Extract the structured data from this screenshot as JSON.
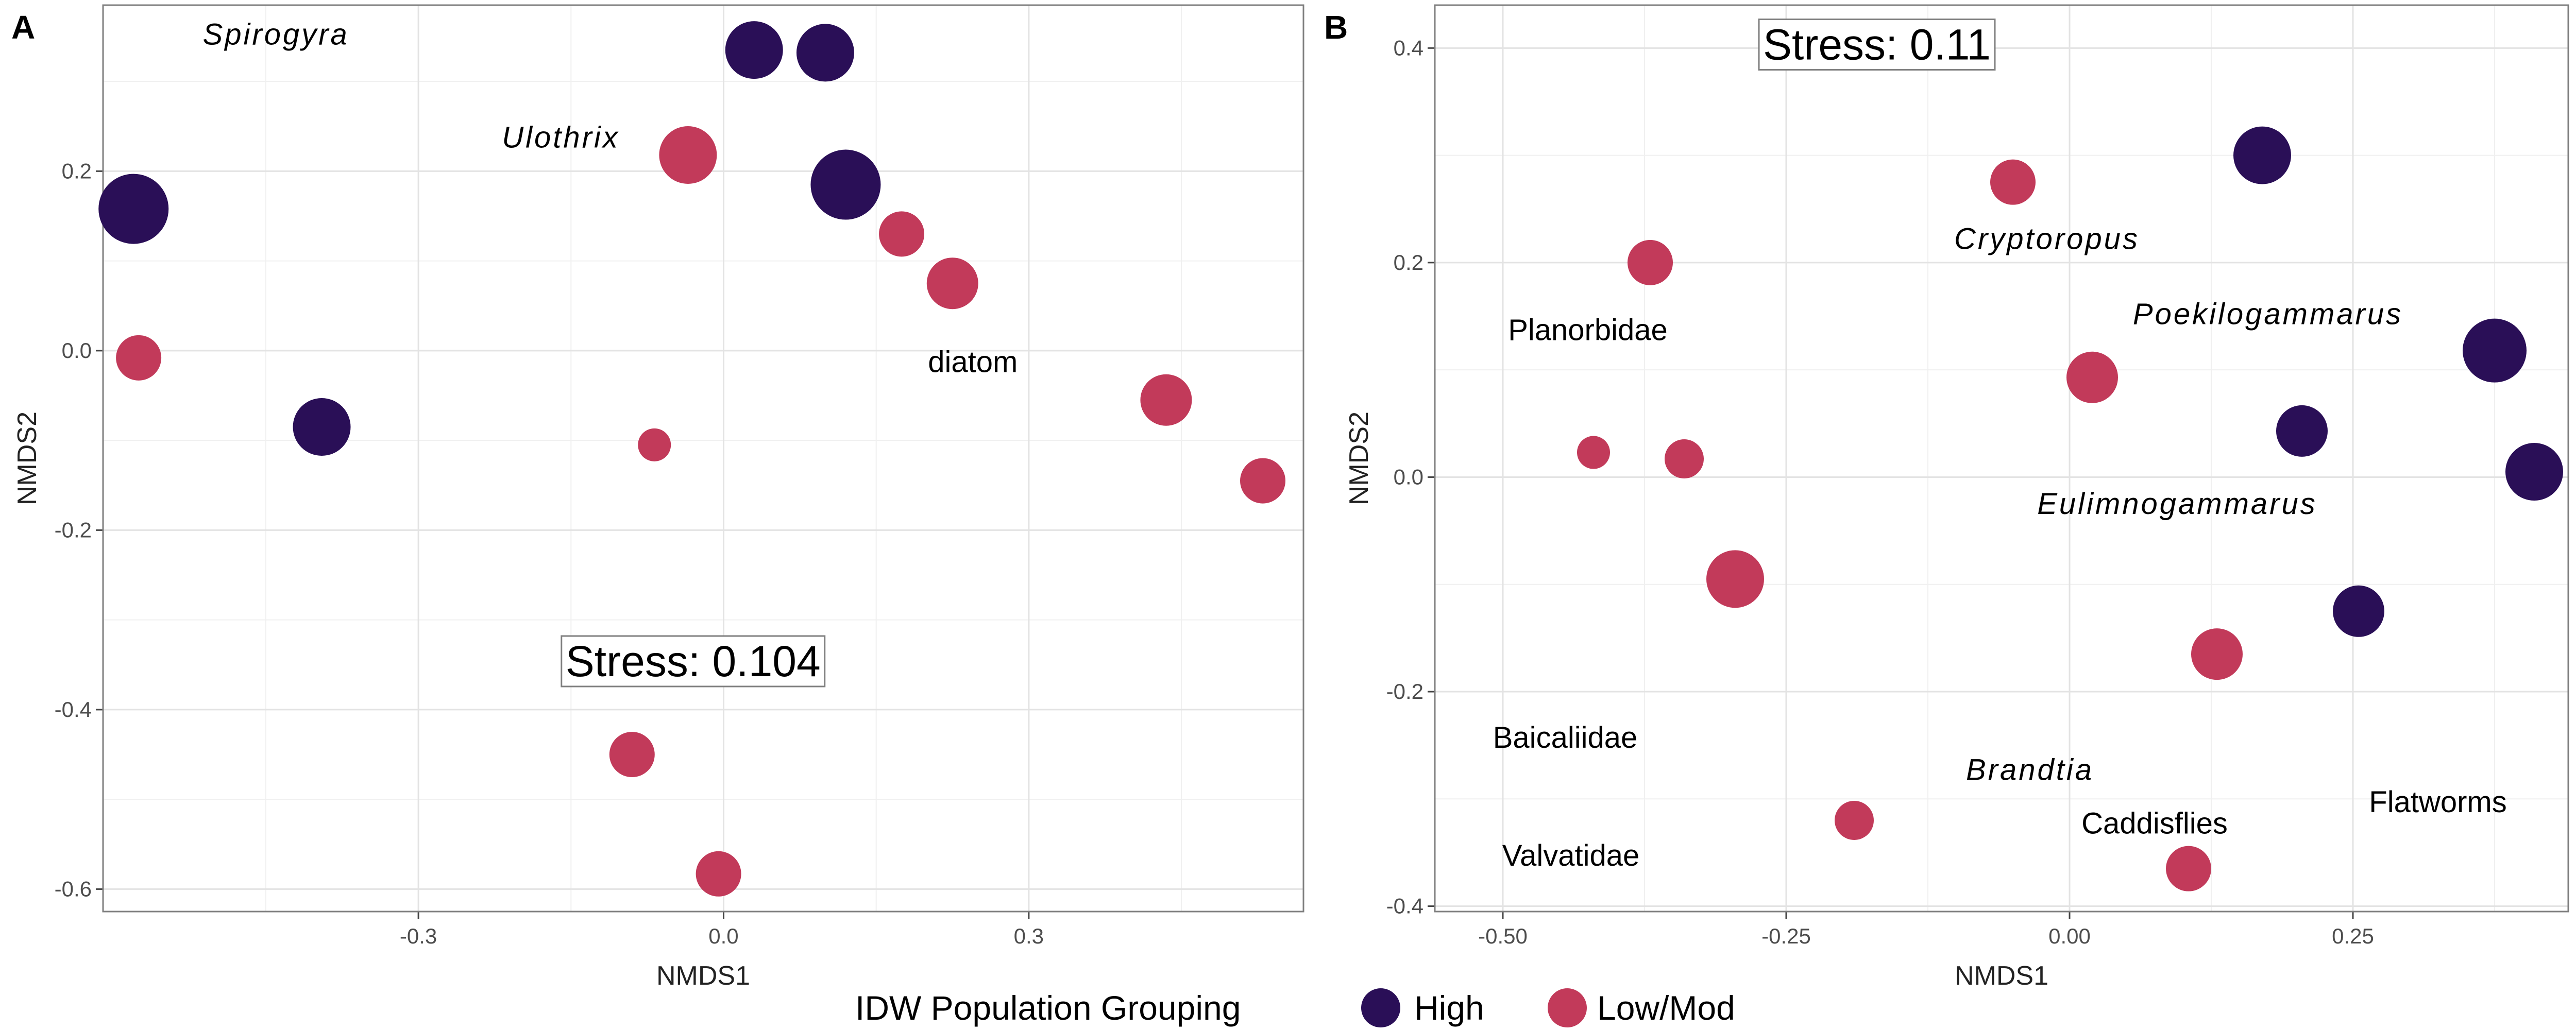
{
  "legend": {
    "title": "IDW Population Grouping",
    "entries": [
      {
        "key": "high",
        "label": "High",
        "color": "#2a0f57"
      },
      {
        "key": "low",
        "label": "Low/Mod",
        "color": "#c23a5a"
      }
    ]
  },
  "chart_data": [
    {
      "type": "scatter",
      "panel": "A",
      "xlabel": "NMDS1",
      "ylabel": "NMDS2",
      "xlim": [
        -0.61,
        0.57
      ],
      "ylim": [
        -0.625,
        0.385
      ],
      "xticks": [
        -0.3,
        0.0,
        0.3
      ],
      "xtick_labels": [
        "-0.3",
        "0.0",
        "0.3"
      ],
      "yticks": [
        -0.6,
        -0.4,
        -0.2,
        0.0,
        0.2
      ],
      "ytick_labels": [
        "-0.6",
        "-0.4",
        "-0.2",
        "0.0",
        "0.2"
      ],
      "grid": true,
      "stress": "Stress:  0.104",
      "stress_pos": [
        -0.03,
        -0.35
      ],
      "points": [
        {
          "x": 0.03,
          "y": 0.335,
          "group": "high",
          "size": 3
        },
        {
          "x": 0.1,
          "y": 0.332,
          "group": "high",
          "size": 3
        },
        {
          "x": 0.12,
          "y": 0.185,
          "group": "high",
          "size": 4
        },
        {
          "x": -0.58,
          "y": 0.158,
          "group": "high",
          "size": 4
        },
        {
          "x": -0.395,
          "y": -0.085,
          "group": "high",
          "size": 3
        },
        {
          "x": -0.035,
          "y": 0.218,
          "group": "low",
          "size": 3
        },
        {
          "x": 0.175,
          "y": 0.13,
          "group": "low",
          "size": 2
        },
        {
          "x": 0.225,
          "y": 0.075,
          "group": "low",
          "size": 2.5
        },
        {
          "x": -0.575,
          "y": -0.008,
          "group": "low",
          "size": 2
        },
        {
          "x": 0.435,
          "y": -0.055,
          "group": "low",
          "size": 2.5
        },
        {
          "x": 0.53,
          "y": -0.145,
          "group": "low",
          "size": 2
        },
        {
          "x": -0.068,
          "y": -0.105,
          "group": "low",
          "size": 1
        },
        {
          "x": -0.09,
          "y": -0.45,
          "group": "low",
          "size": 2
        },
        {
          "x": -0.005,
          "y": -0.583,
          "group": "low",
          "size": 2
        }
      ],
      "taxa": [
        {
          "text": "Spirogyra",
          "x": -0.44,
          "y": 0.35,
          "italic": true
        },
        {
          "text": "Ulothrix",
          "x": -0.16,
          "y": 0.235,
          "italic": true
        },
        {
          "text": "diatom",
          "x": 0.245,
          "y": -0.015,
          "italic": false
        }
      ]
    },
    {
      "type": "scatter",
      "panel": "B",
      "xlabel": "NMDS1",
      "ylabel": "NMDS2",
      "xlim": [
        -0.56,
        0.44
      ],
      "ylim": [
        -0.405,
        0.44
      ],
      "xticks": [
        -0.5,
        -0.25,
        0.0,
        0.25
      ],
      "xtick_labels": [
        "-0.50",
        "-0.25",
        "0.00",
        "0.25"
      ],
      "yticks": [
        -0.4,
        -0.2,
        0.0,
        0.2,
        0.4
      ],
      "ytick_labels": [
        "-0.4",
        "-0.2",
        "0.0",
        "0.2",
        "0.4"
      ],
      "grid": true,
      "stress": "Stress:  0.11",
      "stress_pos": [
        -0.17,
        0.4
      ],
      "points": [
        {
          "x": 0.17,
          "y": 0.3,
          "group": "high",
          "size": 3
        },
        {
          "x": 0.375,
          "y": 0.118,
          "group": "high",
          "size": 3.5
        },
        {
          "x": 0.205,
          "y": 0.043,
          "group": "high",
          "size": 2.5
        },
        {
          "x": 0.41,
          "y": 0.005,
          "group": "high",
          "size": 3
        },
        {
          "x": 0.255,
          "y": -0.125,
          "group": "high",
          "size": 2.5
        },
        {
          "x": -0.05,
          "y": 0.275,
          "group": "low",
          "size": 2
        },
        {
          "x": -0.37,
          "y": 0.2,
          "group": "low",
          "size": 2
        },
        {
          "x": 0.02,
          "y": 0.093,
          "group": "low",
          "size": 2.5
        },
        {
          "x": -0.42,
          "y": 0.023,
          "group": "low",
          "size": 1
        },
        {
          "x": -0.34,
          "y": 0.017,
          "group": "low",
          "size": 1.5
        },
        {
          "x": -0.295,
          "y": -0.095,
          "group": "low",
          "size": 3
        },
        {
          "x": 0.13,
          "y": -0.165,
          "group": "low",
          "size": 2.5
        },
        {
          "x": -0.19,
          "y": -0.32,
          "group": "low",
          "size": 1.5
        },
        {
          "x": 0.105,
          "y": -0.365,
          "group": "low",
          "size": 2
        }
      ],
      "taxa": [
        {
          "text": "Cryptoropus",
          "x": -0.02,
          "y": 0.22,
          "italic": true
        },
        {
          "text": "Planorbidae",
          "x": -0.425,
          "y": 0.135,
          "italic": false
        },
        {
          "text": "Poekilogammarus",
          "x": 0.175,
          "y": 0.15,
          "italic": true
        },
        {
          "text": "Eulimnogammarus",
          "x": 0.095,
          "y": -0.027,
          "italic": true
        },
        {
          "text": "Baicaliidae",
          "x": -0.445,
          "y": -0.245,
          "italic": false
        },
        {
          "text": "Brandtia",
          "x": -0.035,
          "y": -0.275,
          "italic": true
        },
        {
          "text": "Caddisflies",
          "x": 0.075,
          "y": -0.325,
          "italic": false
        },
        {
          "text": "Flatworms",
          "x": 0.325,
          "y": -0.305,
          "italic": false
        },
        {
          "text": "Valvatidae",
          "x": -0.44,
          "y": -0.355,
          "italic": false
        }
      ]
    }
  ]
}
